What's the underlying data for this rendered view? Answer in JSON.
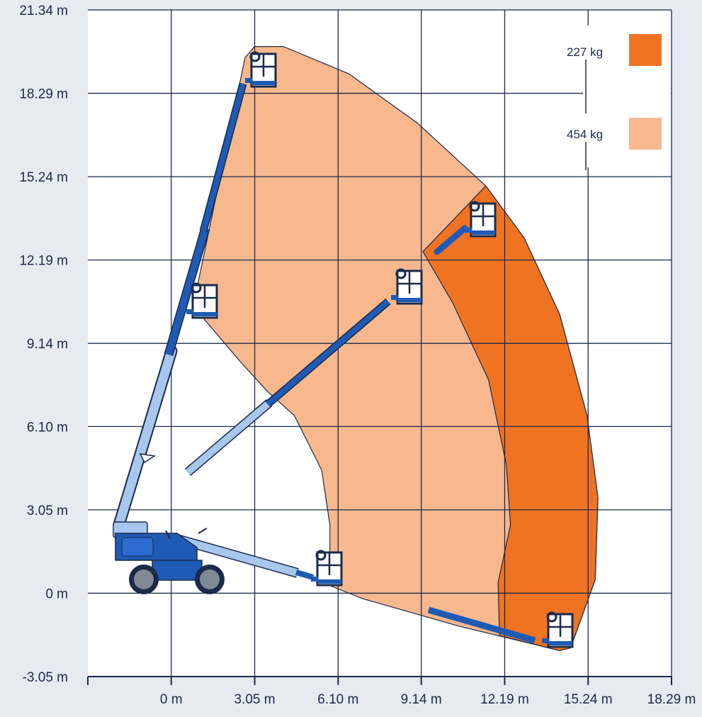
{
  "colors": {
    "background": "#e6eaf1",
    "plot_background": "#ffffff",
    "grid": "#1b2a4a",
    "envelope_454": "#f7b88e",
    "envelope_227": "#f07322",
    "boom_dark": "#1f5bb5",
    "boom_light": "#a8c7ee",
    "machine_body": "#1f5bb5",
    "wheel": "#808a94"
  },
  "chart_data": {
    "type": "area",
    "x_ticks": [
      "0 m",
      "3.05 m",
      "6.10 m",
      "9.14 m",
      "12.19 m",
      "15.24 m",
      "18.29 m"
    ],
    "y_ticks": [
      "21.34 m",
      "18.29 m",
      "15.24 m",
      "12.19 m",
      "9.14 m",
      "6.10 m",
      "3.05 m",
      "0 m",
      "-3.05 m"
    ],
    "x_range": [
      -3.05,
      18.29
    ],
    "y_range": [
      -3.05,
      21.34
    ],
    "grid": true,
    "legend_position": "top-right",
    "legend": [
      {
        "label": "227 kg",
        "color": "#f07322"
      },
      {
        "label": "454 kg",
        "color": "#f7b88e"
      }
    ],
    "envelope_454": [
      [
        3.05,
        20.0
      ],
      [
        4.1,
        20.0
      ],
      [
        6.5,
        19.0
      ],
      [
        9.0,
        17.2
      ],
      [
        11.5,
        14.9
      ],
      [
        12.9,
        13.0
      ],
      [
        14.2,
        10.2
      ],
      [
        15.2,
        6.5
      ],
      [
        15.6,
        3.5
      ],
      [
        15.5,
        0.5
      ],
      [
        14.6,
        -2.0
      ],
      [
        14.2,
        -2.1
      ],
      [
        10.5,
        -1.2
      ],
      [
        7.0,
        -0.2
      ],
      [
        5.5,
        0.4
      ],
      [
        5.8,
        1.3
      ],
      [
        5.8,
        2.5
      ],
      [
        5.5,
        4.5
      ],
      [
        4.5,
        6.5
      ],
      [
        3.5,
        7.4
      ],
      [
        2.5,
        8.5
      ],
      [
        0.8,
        10.5
      ],
      [
        2.7,
        19.6
      ]
    ],
    "envelope_227": [
      [
        11.5,
        14.9
      ],
      [
        12.9,
        13.0
      ],
      [
        14.2,
        10.2
      ],
      [
        15.2,
        6.5
      ],
      [
        15.6,
        3.5
      ],
      [
        15.5,
        0.5
      ],
      [
        14.6,
        -2.0
      ],
      [
        14.2,
        -2.1
      ],
      [
        12.0,
        -1.55
      ],
      [
        11.95,
        0.4
      ],
      [
        12.4,
        2.5
      ],
      [
        12.25,
        4.7
      ],
      [
        11.6,
        7.8
      ],
      [
        10.3,
        10.6
      ],
      [
        9.2,
        12.5
      ]
    ]
  }
}
